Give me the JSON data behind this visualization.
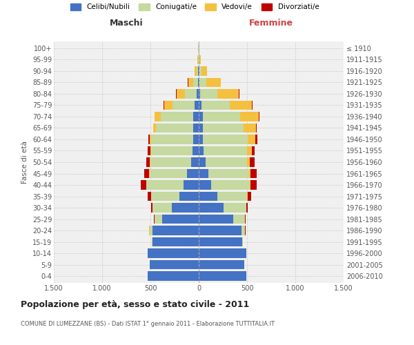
{
  "age_groups": [
    "0-4",
    "5-9",
    "10-14",
    "15-19",
    "20-24",
    "25-29",
    "30-34",
    "35-39",
    "40-44",
    "45-49",
    "50-54",
    "55-59",
    "60-64",
    "65-69",
    "70-74",
    "75-79",
    "80-84",
    "85-89",
    "90-94",
    "95-99",
    "100+"
  ],
  "birth_years": [
    "2006-2010",
    "2001-2005",
    "1996-2000",
    "1991-1995",
    "1986-1990",
    "1981-1985",
    "1976-1980",
    "1971-1975",
    "1966-1970",
    "1961-1965",
    "1956-1960",
    "1951-1955",
    "1946-1950",
    "1941-1945",
    "1936-1940",
    "1931-1935",
    "1926-1930",
    "1921-1925",
    "1916-1920",
    "1911-1915",
    "≤ 1910"
  ],
  "colors": {
    "celibi": "#4472c4",
    "coniugati": "#c5d9a0",
    "vedovi": "#f5c040",
    "divorziati": "#c00000"
  },
  "males": {
    "celibi": [
      530,
      510,
      530,
      480,
      480,
      380,
      280,
      200,
      160,
      120,
      80,
      65,
      60,
      60,
      55,
      40,
      20,
      10,
      5,
      3,
      2
    ],
    "coniugati": [
      0,
      0,
      2,
      5,
      30,
      80,
      200,
      290,
      380,
      390,
      420,
      430,
      430,
      380,
      340,
      230,
      120,
      50,
      15,
      5,
      2
    ],
    "vedovi": [
      0,
      0,
      0,
      0,
      1,
      0,
      1,
      2,
      2,
      2,
      5,
      8,
      15,
      30,
      60,
      90,
      90,
      50,
      20,
      5,
      2
    ],
    "divorziati": [
      0,
      0,
      0,
      0,
      2,
      5,
      15,
      35,
      55,
      55,
      40,
      25,
      20,
      5,
      5,
      5,
      5,
      2,
      0,
      0,
      0
    ]
  },
  "females": {
    "nubili": [
      490,
      470,
      490,
      450,
      440,
      360,
      260,
      190,
      130,
      100,
      70,
      50,
      45,
      45,
      40,
      30,
      15,
      8,
      5,
      3,
      2
    ],
    "coniugate": [
      0,
      0,
      2,
      8,
      40,
      120,
      230,
      310,
      400,
      420,
      430,
      450,
      460,
      420,
      390,
      290,
      180,
      70,
      20,
      5,
      2
    ],
    "vedove": [
      0,
      0,
      0,
      0,
      1,
      1,
      2,
      5,
      8,
      15,
      30,
      50,
      80,
      130,
      190,
      230,
      220,
      150,
      60,
      15,
      3
    ],
    "divorziate": [
      0,
      0,
      0,
      0,
      2,
      5,
      15,
      40,
      65,
      65,
      50,
      30,
      20,
      8,
      8,
      5,
      5,
      2,
      0,
      0,
      0
    ]
  },
  "title": "Popolazione per età, sesso e stato civile - 2011",
  "subtitle": "COMUNE DI LUMEZZANE (BS) - Dati ISTAT 1° gennaio 2011 - Elaborazione TUTTITALIA.IT",
  "xlabel_left": "Maschi",
  "xlabel_right": "Femmine",
  "ylabel_left": "Fasce di età",
  "xlim": 1500,
  "legend_labels": [
    "Celibi/Nubili",
    "Coniugati/e",
    "Vedovi/e",
    "Divorziati/e"
  ],
  "bg_color": "#f0f0f0",
  "grid_color": "#cccccc"
}
